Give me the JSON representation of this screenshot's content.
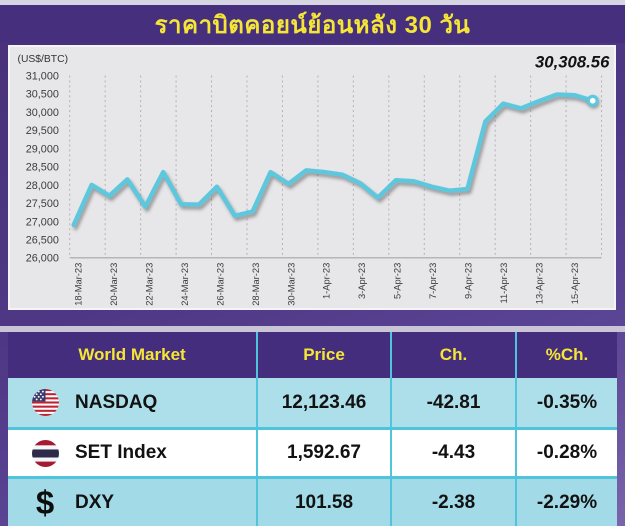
{
  "title": "ราคาบิตคอยน์ย้อนหลัง 30 วัน",
  "chart_data": {
    "type": "line",
    "title": "ราคาบิตคอยน์ย้อนหลัง 30 วัน",
    "ylabel": "(US$/BTC)",
    "ylim": [
      26000,
      31000
    ],
    "y_ticks": [
      "31,000",
      "30,500",
      "30,000",
      "29,500",
      "29,000",
      "28,500",
      "28,000",
      "27,500",
      "27,000",
      "26,500",
      "26,000"
    ],
    "x_tick_labels": [
      "18-Mar-23",
      "20-Mar-23",
      "22-Mar-23",
      "24-Mar-23",
      "26-Mar-23",
      "28-Mar-23",
      "30-Mar-23",
      "1-Apr-23",
      "3-Apr-23",
      "5-Apr-23",
      "7-Apr-23",
      "9-Apr-23",
      "11-Apr-23",
      "13-Apr-23",
      "15-Apr-23"
    ],
    "x": [
      "18-Mar-23",
      "19-Mar-23",
      "20-Mar-23",
      "21-Mar-23",
      "22-Mar-23",
      "23-Mar-23",
      "24-Mar-23",
      "25-Mar-23",
      "26-Mar-23",
      "27-Mar-23",
      "28-Mar-23",
      "29-Mar-23",
      "30-Mar-23",
      "31-Mar-23",
      "1-Apr-23",
      "2-Apr-23",
      "3-Apr-23",
      "4-Apr-23",
      "5-Apr-23",
      "6-Apr-23",
      "7-Apr-23",
      "8-Apr-23",
      "9-Apr-23",
      "10-Apr-23",
      "11-Apr-23",
      "12-Apr-23",
      "13-Apr-23",
      "14-Apr-23",
      "15-Apr-23",
      "16-Apr-23"
    ],
    "values": [
      26900,
      28000,
      27700,
      28150,
      27400,
      28350,
      27470,
      27460,
      27950,
      27150,
      27270,
      28350,
      28030,
      28400,
      28350,
      28280,
      28050,
      27650,
      28130,
      28100,
      27950,
      27840,
      27890,
      29740,
      30230,
      30100,
      30300,
      30480,
      30460,
      30308.56
    ],
    "annotation": "30,308.56",
    "last_value": 30308.56,
    "grid": "vertical-dashed",
    "legend": "none",
    "line_color": "#5dc8dd"
  },
  "table": {
    "columns": [
      "World Market",
      "Price",
      "Ch.",
      "%Ch."
    ],
    "rows": [
      {
        "icon": "us-flag-icon",
        "name": "NASDAQ",
        "price": "12,123.46",
        "change": "-42.81",
        "pct_change": "-0.35%"
      },
      {
        "icon": "thai-flag-icon",
        "name": "SET Index",
        "price": "1,592.67",
        "change": "-4.43",
        "pct_change": "-0.28%"
      },
      {
        "icon": "dollar-icon",
        "name": "DXY",
        "price": "101.58",
        "change": "-2.38",
        "pct_change": "-2.29%"
      }
    ],
    "dollar_glyph": "$"
  },
  "colors": {
    "title_bar": "#46307d",
    "table_header": "#452d7d",
    "accent_yellow": "#f5e636",
    "line_cyan": "#5dc8dd",
    "row_cyan": "#addfeb",
    "separator_cyan": "#4fc4da",
    "panel_gray": "#e7e6e9"
  }
}
